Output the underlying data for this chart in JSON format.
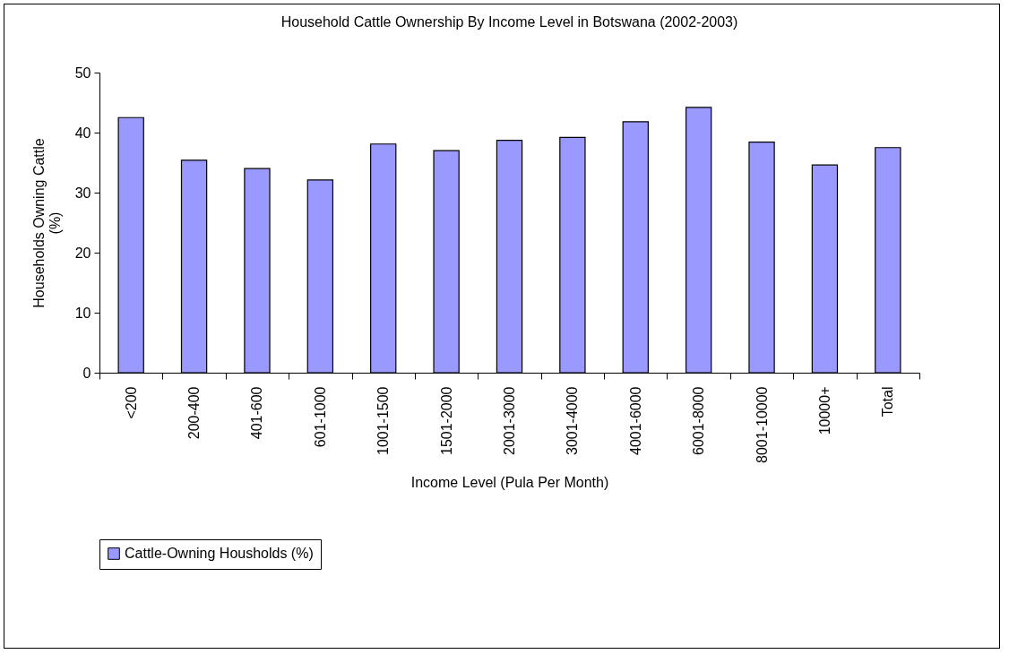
{
  "chart_data": {
    "type": "bar",
    "title": "Household Cattle Ownership By Income Level in Botswana (2002-2003)",
    "xlabel": "Income Level (Pula Per Month)",
    "ylabel": "Households Owning Cattle (%)",
    "categories": [
      "<200",
      "200-400",
      "401-600",
      "601-1000",
      "1001-1500",
      "1501-2000",
      "2001-3000",
      "3001-4000",
      "4001-6000",
      "6001-8000",
      "8001-10000",
      "10000+",
      "Total"
    ],
    "series": [
      {
        "name": "Cattle-Owning Housholds (%)",
        "color": "#9999ff",
        "values": [
          42.5,
          35.4,
          34.0,
          32.1,
          38.1,
          37.0,
          38.7,
          39.2,
          41.8,
          44.2,
          38.4,
          34.6,
          37.5
        ]
      }
    ],
    "ylim": [
      0,
      50
    ],
    "yticks": [
      0,
      10,
      20,
      30,
      40,
      50
    ],
    "grid": false,
    "legend": "bottom"
  }
}
